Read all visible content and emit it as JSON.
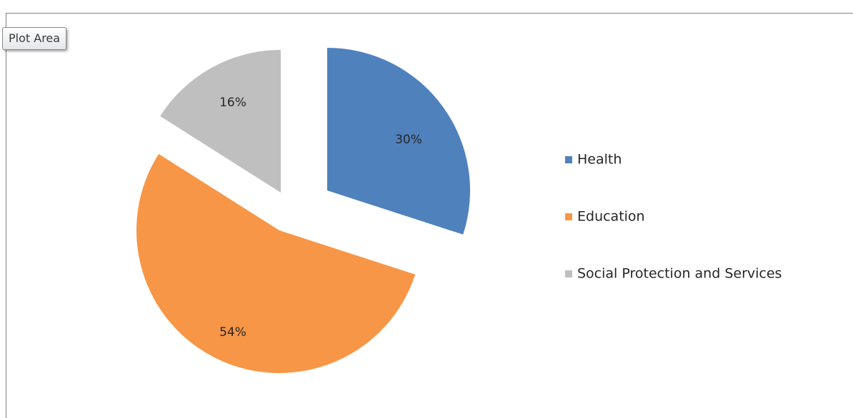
{
  "tooltip": {
    "text": "Plot Area"
  },
  "chart_data": {
    "type": "pie",
    "exploded": true,
    "legend_position": "right",
    "slices": [
      {
        "name": "Health",
        "value": 30,
        "label": "30%",
        "color": "#4f81bd"
      },
      {
        "name": "Education",
        "value": 54,
        "label": "54%",
        "color": "#f79646"
      },
      {
        "name": "Social Protection and Services",
        "value": 16,
        "label": "16%",
        "color": "#bfbfbf"
      }
    ]
  }
}
